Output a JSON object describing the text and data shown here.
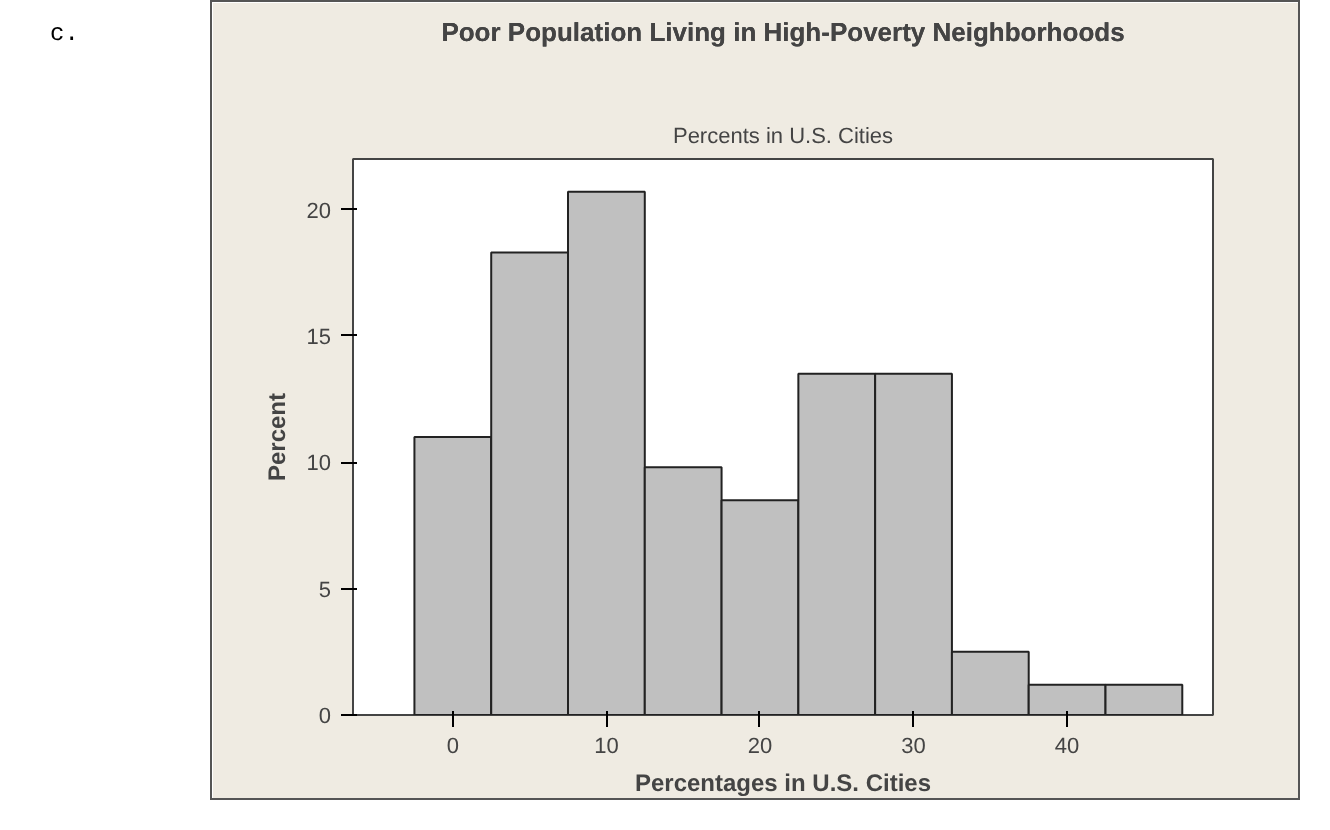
{
  "chart_data": {
    "type": "histogram",
    "title": "Poor Population Living in High-Poverty Neighborhoods",
    "subtitle": "Percents in U.S. Cities",
    "xlabel": "Percentages in U.S. Cities",
    "ylabel": "Percent",
    "bins": [
      -2.5,
      2.5,
      7.5,
      12.5,
      17.5,
      22.5,
      27.5,
      32.5,
      37.5,
      42.5,
      47.5
    ],
    "values": [
      11.0,
      18.3,
      20.7,
      9.8,
      8.5,
      13.5,
      13.5,
      2.5,
      1.2,
      1.2
    ],
    "color": "#c0c0c0",
    "xlim": [
      -6.5,
      49.5
    ],
    "ylim": [
      0,
      22
    ],
    "xticks": [
      0,
      10,
      20,
      30,
      40
    ],
    "yticks": [
      0,
      5,
      10,
      15,
      20
    ],
    "grid": false,
    "annotations": [
      "c."
    ]
  }
}
